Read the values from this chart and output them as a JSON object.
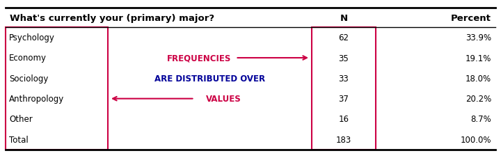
{
  "title_col1": "What's currently your (primary) major?",
  "title_col2": "N",
  "title_col3": "Percent",
  "rows": [
    [
      "Psychology",
      "62",
      "33.9%"
    ],
    [
      "Economy",
      "35",
      "19.1%"
    ],
    [
      "Sociology",
      "33",
      "18.0%"
    ],
    [
      "Anthropology",
      "37",
      "20.2%"
    ],
    [
      "Other",
      "16",
      "8.7%"
    ],
    [
      "Total",
      "183",
      "100.0%"
    ]
  ],
  "freq_text": "FREQUENCIES",
  "dist_text": "ARE DISTRIBUTED OVER",
  "vals_text": "VALUES",
  "annotation_color": "#CC0044",
  "annotation_navy": "#000099",
  "border_color": "#CC0044",
  "figsize": [
    7.2,
    2.28
  ],
  "dpi": 100
}
